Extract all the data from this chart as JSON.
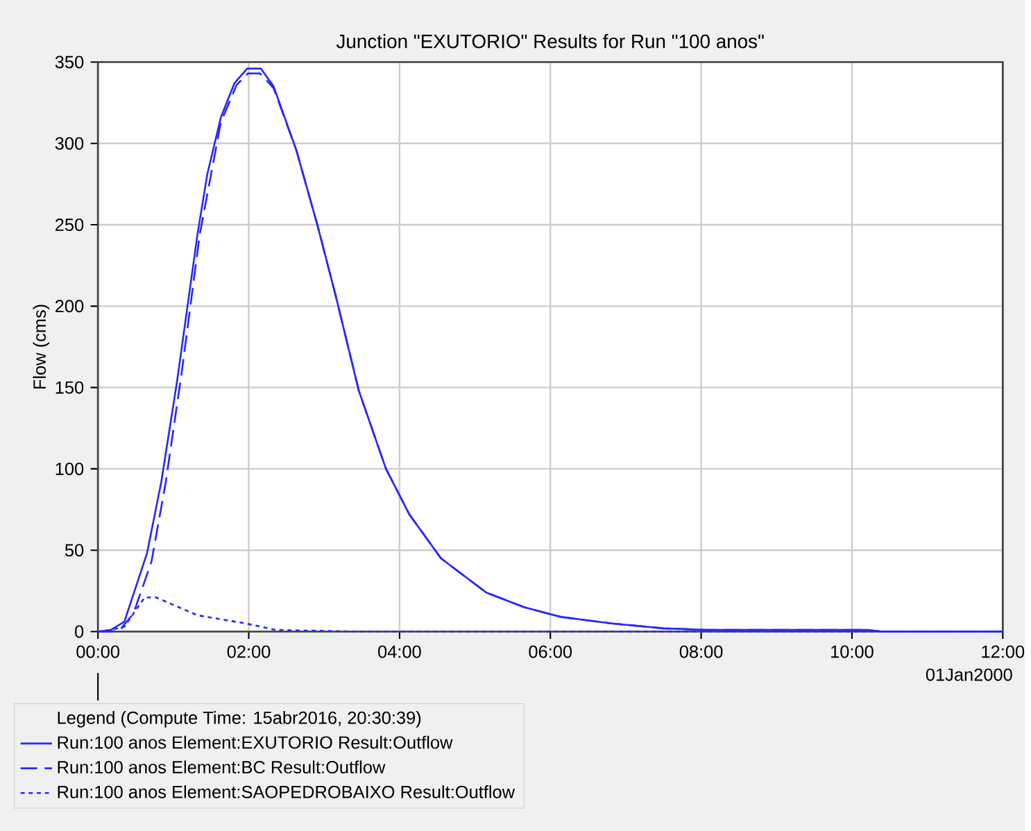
{
  "chart_data": {
    "type": "line",
    "title": "Junction \"EXUTORIO\" Results for Run \"100 anos\"",
    "ylabel": "Flow (cms)",
    "legend_title": "Legend (Compute Time: 15abr2016, 20:30:39)",
    "legend": "bottom",
    "grid": true,
    "marker": "none",
    "xlim": [
      0,
      12
    ],
    "ylim": [
      0,
      350
    ],
    "xticks": [
      {
        "value": 0,
        "label": "00:00"
      },
      {
        "value": 2,
        "label": "02:00"
      },
      {
        "value": 4,
        "label": "04:00"
      },
      {
        "value": 6,
        "label": "06:00"
      },
      {
        "value": 8,
        "label": "08:00"
      },
      {
        "value": 10,
        "label": "10:00"
      },
      {
        "value": 12,
        "label": "12:00"
      }
    ],
    "yticks": [
      0,
      50,
      100,
      150,
      200,
      250,
      300,
      350
    ],
    "annotations": [
      "01Jan2000"
    ],
    "series": [
      {
        "name": "Run:100 anos Element:EXUTORIO Result:Outflow",
        "color": "#2828ff",
        "line_style": "solid",
        "x": [
          0,
          0.17,
          0.35,
          0.65,
          0.84,
          1.05,
          1.32,
          1.45,
          1.63,
          1.81,
          1.98,
          2.16,
          2.33,
          2.63,
          2.91,
          3.15,
          3.46,
          3.82,
          4.13,
          4.55,
          5.15,
          5.65,
          6.14,
          6.81,
          7.5,
          8.1,
          10.2,
          10.4,
          12
        ],
        "values": [
          0,
          1,
          6,
          48,
          92,
          154,
          244,
          281,
          316,
          337,
          346,
          346,
          335,
          296,
          250,
          207,
          148,
          100,
          72,
          45,
          24,
          15,
          9,
          5,
          2,
          1,
          1,
          0,
          0
        ]
      },
      {
        "name": "Run:100 anos Element:BC Result:Outflow",
        "color": "#2828ff",
        "line_style": "dashed",
        "x": [
          0,
          0.17,
          0.29,
          0.47,
          0.71,
          0.9,
          1.11,
          1.35,
          1.63,
          1.84,
          1.99,
          2.15,
          2.33,
          2.63,
          2.91,
          3.15,
          3.46,
          3.82,
          4.13,
          4.55,
          5.15,
          5.65,
          6.14,
          6.81,
          7.5,
          8.1,
          10.2,
          10.4,
          12
        ],
        "values": [
          0,
          0,
          1,
          11,
          43,
          92,
          159,
          244,
          313,
          336,
          343,
          343,
          334,
          296,
          250,
          207,
          148,
          100,
          72,
          45,
          24,
          15,
          9,
          5,
          2,
          1,
          1,
          0,
          0
        ]
      },
      {
        "name": "Run:100 anos Element:SAOPEDROBAIXO Result:Outflow",
        "color": "#2828ff",
        "line_style": "dotted",
        "x": [
          0,
          0.17,
          0.35,
          0.62,
          0.77,
          1.32,
          1.96,
          2.36,
          3.45,
          12
        ],
        "values": [
          0,
          1,
          3,
          21,
          21,
          10,
          5,
          1,
          0,
          0
        ]
      }
    ]
  }
}
